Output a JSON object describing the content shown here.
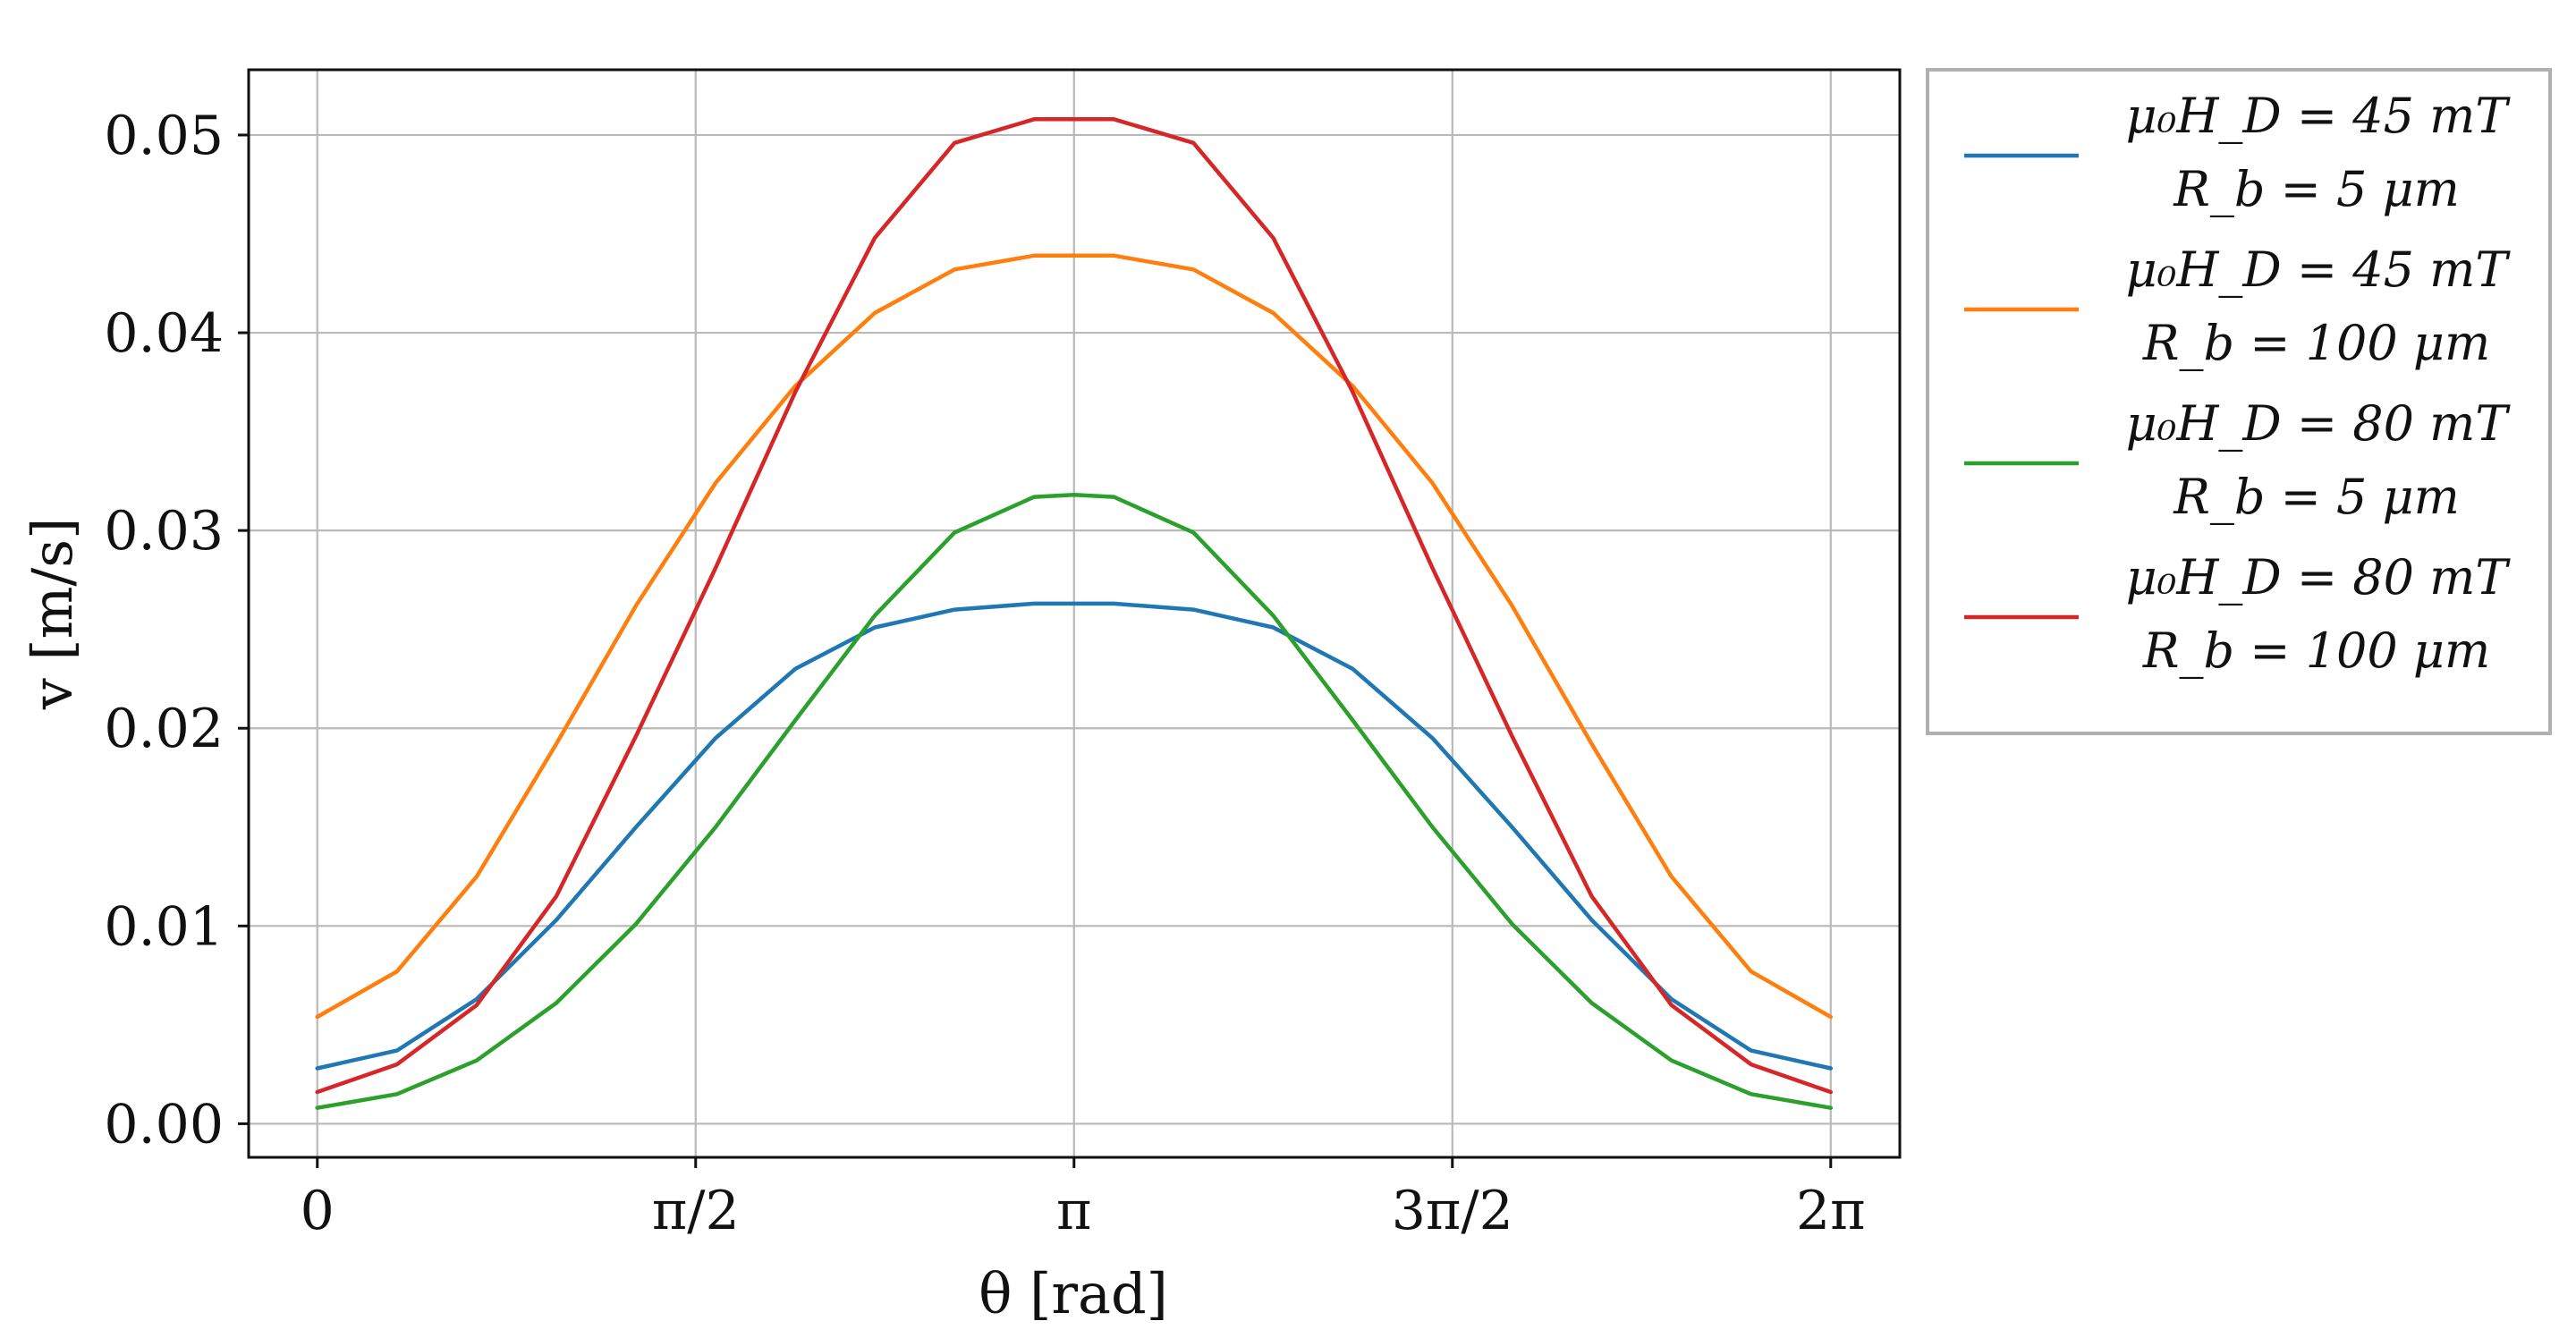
{
  "chart_data": {
    "type": "line",
    "title": "",
    "xlabel": "θ [rad]",
    "ylabel": "v [m/s]",
    "xlim": [
      -0.285,
      6.57
    ],
    "ylim": [
      -0.0017,
      0.0533
    ],
    "x_ticks": [
      {
        "value": 0,
        "label": "0"
      },
      {
        "value": 1.5708,
        "label": "π/2"
      },
      {
        "value": 3.1416,
        "label": "π"
      },
      {
        "value": 4.7124,
        "label": "3π/2"
      },
      {
        "value": 6.2832,
        "label": "2π"
      }
    ],
    "y_ticks": [
      {
        "value": 0.0,
        "label": "0.00"
      },
      {
        "value": 0.01,
        "label": "0.01"
      },
      {
        "value": 0.02,
        "label": "0.02"
      },
      {
        "value": 0.03,
        "label": "0.03"
      },
      {
        "value": 0.04,
        "label": "0.04"
      },
      {
        "value": 0.05,
        "label": "0.05"
      }
    ],
    "grid": true,
    "legend_position": "outside-right",
    "x": [
      0,
      0.3307,
      0.6614,
      0.9921,
      1.3228,
      1.6535,
      1.9842,
      2.3149,
      2.6456,
      2.9762,
      3.1416,
      3.3069,
      3.6376,
      3.9683,
      4.299,
      4.6297,
      4.9604,
      5.2911,
      5.6218,
      5.9525,
      6.2832
    ],
    "series": [
      {
        "name": "μ0HD = 45 mT, Rb = 5 μm",
        "legend_lines": [
          "μ₀H_D  =  45 mT",
          "R_b  =  5 μm"
        ],
        "color": "#1f77b4",
        "values": [
          0.0028,
          0.0037,
          0.0063,
          0.0103,
          0.015,
          0.0195,
          0.023,
          0.0251,
          0.026,
          0.0263,
          0.0263,
          0.0263,
          0.026,
          0.0251,
          0.023,
          0.0195,
          0.015,
          0.0103,
          0.0063,
          0.0037,
          0.0028
        ]
      },
      {
        "name": "μ0HD = 45 mT, Rb = 100 μm",
        "legend_lines": [
          "μ₀H_D = 45 mT",
          "R_b  =  100 μm"
        ],
        "color": "#ff7f0e",
        "values": [
          0.0054,
          0.0077,
          0.0125,
          0.0192,
          0.0262,
          0.0324,
          0.0373,
          0.041,
          0.0432,
          0.0439,
          0.0439,
          0.0439,
          0.0432,
          0.041,
          0.0373,
          0.0324,
          0.0262,
          0.0192,
          0.0125,
          0.0077,
          0.0054
        ]
      },
      {
        "name": "μ0HD = 80 mT, Rb = 5 μm",
        "legend_lines": [
          "μ₀H_D  =  80 mT",
          "R_b  =  5 μm"
        ],
        "color": "#2ca02c",
        "values": [
          0.0008,
          0.0015,
          0.0032,
          0.0061,
          0.0101,
          0.015,
          0.0204,
          0.0257,
          0.0299,
          0.0317,
          0.0318,
          0.0317,
          0.0299,
          0.0257,
          0.0204,
          0.015,
          0.0101,
          0.0061,
          0.0032,
          0.0015,
          0.0008
        ]
      },
      {
        "name": "μ0HD = 80 mT, Rb = 100 μm",
        "legend_lines": [
          "μ₀H_D = 80 mT",
          "R_b = 100 μm"
        ],
        "color": "#d62728",
        "values": [
          0.0016,
          0.003,
          0.006,
          0.0115,
          0.0196,
          0.0281,
          0.037,
          0.0448,
          0.0496,
          0.0508,
          0.0508,
          0.0508,
          0.0496,
          0.0448,
          0.037,
          0.0281,
          0.0196,
          0.0115,
          0.006,
          0.003,
          0.0016
        ]
      }
    ]
  }
}
